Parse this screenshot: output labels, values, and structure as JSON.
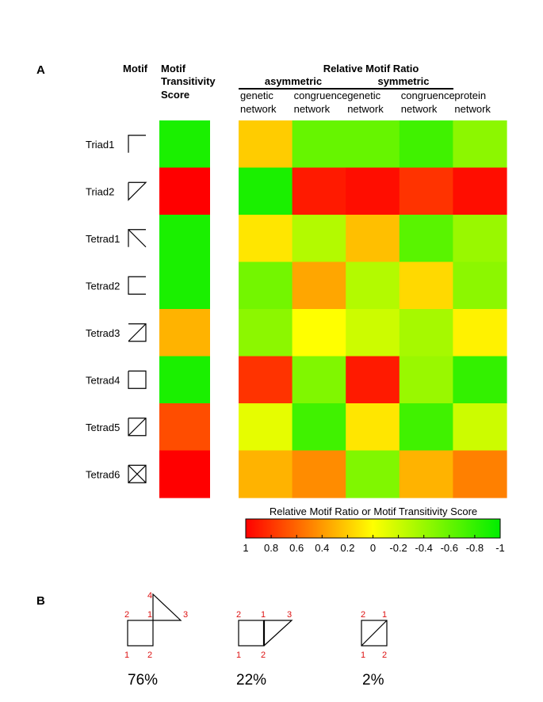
{
  "panels": {
    "a_label": "A",
    "b_label": "B"
  },
  "chart_data": {
    "type": "heatmap",
    "headers": {
      "motif": "Motif",
      "transitivity": [
        "Motif",
        "Transitivity",
        "Score"
      ],
      "ratio_title": "Relative Motif Ratio",
      "group_asymmetric": "asymmetric",
      "group_symmetric": "symmetric"
    },
    "rows": [
      "Triad1",
      "Triad2",
      "Tetrad1",
      "Tetrad2",
      "Tetrad3",
      "Tetrad4",
      "Tetrad5",
      "Tetrad6"
    ],
    "row_icons": [
      "triad1-motif-icon",
      "triad2-motif-icon",
      "tetrad1-motif-icon",
      "tetrad2-motif-icon",
      "tetrad3-motif-icon",
      "tetrad4-motif-icon",
      "tetrad5-motif-icon",
      "tetrad6-motif-icon"
    ],
    "transitivity_scores": [
      -0.9,
      1.0,
      -0.9,
      -0.9,
      0.3,
      -0.9,
      0.7,
      1.0
    ],
    "columns": [
      {
        "line1": "genetic",
        "line2": "network",
        "group": "asymmetric"
      },
      {
        "line1": "congruence",
        "line2": "network",
        "group": "asymmetric"
      },
      {
        "line1": "genetic",
        "line2": "network",
        "group": "symmetric"
      },
      {
        "line1": "congruence",
        "line2": "network",
        "group": "symmetric"
      },
      {
        "line1": "protein",
        "line2": "network",
        "group": ""
      }
    ],
    "ratio_values": [
      [
        0.2,
        -0.6,
        -0.6,
        -0.75,
        -0.45
      ],
      [
        -0.9,
        0.9,
        0.95,
        0.8,
        0.95
      ],
      [
        0.1,
        -0.3,
        0.25,
        -0.65,
        -0.4
      ],
      [
        -0.55,
        0.35,
        -0.3,
        0.15,
        -0.45
      ],
      [
        -0.45,
        0.0,
        -0.2,
        -0.35,
        0.05
      ],
      [
        0.8,
        -0.5,
        0.9,
        -0.4,
        -0.8
      ],
      [
        -0.1,
        -0.75,
        0.1,
        -0.75,
        -0.2
      ],
      [
        0.3,
        0.45,
        -0.5,
        0.3,
        0.5
      ]
    ],
    "colorbar": {
      "title": "Relative Motif Ratio or Motif Transitivity Score",
      "ticks": [
        "1",
        "0.8",
        "0.6",
        "0.4",
        "0.2",
        "0",
        "-0.2",
        "-0.4",
        "-0.6",
        "-0.8",
        "-1"
      ],
      "range": [
        1,
        -1
      ],
      "colors": {
        "high": "#ff0000",
        "mid": "#ffff00",
        "low": "#00ee00"
      }
    }
  },
  "panel_b": {
    "motifs": [
      {
        "name": "tetrad-square-triangle-vertex",
        "labels": [
          "4",
          "2",
          "1",
          "3",
          "1",
          "2"
        ],
        "percent": "76%"
      },
      {
        "name": "tetrad-square-triangle-edge",
        "labels": [
          "2",
          "1",
          "3",
          "1",
          "2"
        ],
        "percent": "22%"
      },
      {
        "name": "tetrad-square-diagonal",
        "labels": [
          "2",
          "1",
          "1",
          "2"
        ],
        "percent": "2%"
      }
    ],
    "label_color": "#dd1111"
  }
}
